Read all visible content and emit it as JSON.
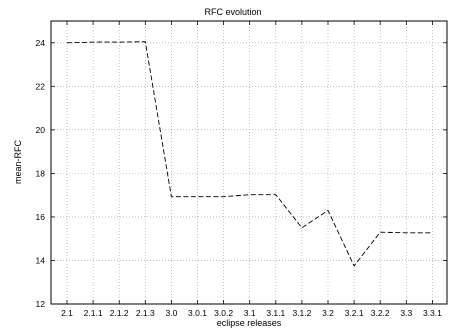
{
  "chart_data": {
    "type": "line",
    "title": "RFC evolution",
    "xlabel": "eclipse releases",
    "ylabel": "mean-RFC",
    "categories": [
      "2.1",
      "2.1.1",
      "2.1.2",
      "2.1.3",
      "3.0",
      "3.0.1",
      "3.0.2",
      "3.1",
      "3.1.1",
      "3.1.2",
      "3.2",
      "3.2.1",
      "3.2.2",
      "3.3",
      "3.3.1"
    ],
    "series": [
      {
        "values": [
          24.0,
          24.03,
          24.03,
          24.05,
          16.93,
          16.93,
          16.93,
          17.02,
          17.02,
          15.5,
          16.3,
          13.75,
          15.3,
          15.27,
          15.27
        ],
        "color": "#000000",
        "line_style": "dashed"
      }
    ],
    "ylim": [
      12,
      25
    ],
    "yticks": [
      12,
      14,
      16,
      18,
      20,
      22,
      24
    ],
    "grid": true,
    "legend": "none"
  }
}
